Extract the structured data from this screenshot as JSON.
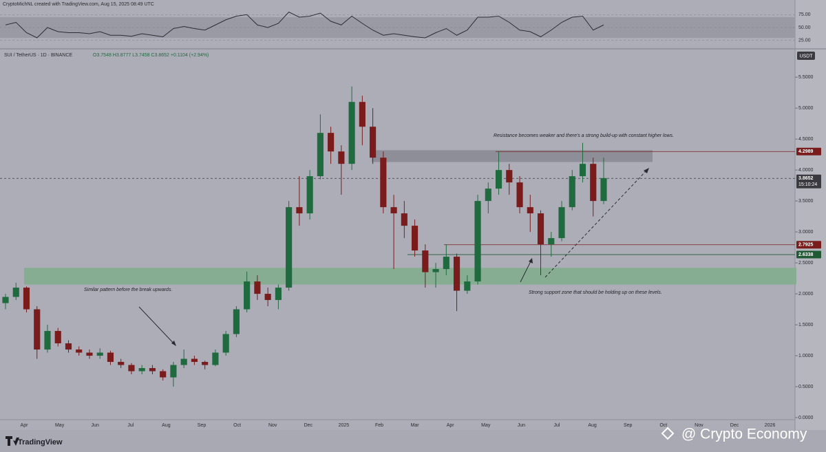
{
  "chart_data": {
    "type": "candlestick",
    "header": "CryptoMichNL created with TradingView.com, Aug 15, 2025 08:49 UTC",
    "symbol_line": "SUI / TetherUS · 1D · BINANCE",
    "ohlc_line": "O3.7548 H3.8777 L3.7458 C3.8652 +0.1104 (+2.94%)",
    "currency": "USDT",
    "up_color": "#1f6b3f",
    "down_color": "#7a1c1c",
    "ylim": [
      0,
      5.68
    ],
    "yticks": [
      {
        "value": 0,
        "label": "0.0000"
      },
      {
        "value": 0.5,
        "label": "0.5000"
      },
      {
        "value": 1,
        "label": "1.0000"
      },
      {
        "value": 1.5,
        "label": "1.5000"
      },
      {
        "value": 2,
        "label": "2.0000"
      },
      {
        "value": 2.5,
        "label": "2.5000"
      },
      {
        "value": 3,
        "label": "3.0000"
      },
      {
        "value": 3.5,
        "label": "3.5000"
      },
      {
        "value": 4,
        "label": "4.0000"
      },
      {
        "value": 4.5,
        "label": "4.5000"
      },
      {
        "value": 5,
        "label": "5.0000"
      },
      {
        "value": 5.5,
        "label": "5.5000"
      }
    ],
    "months": [
      "Apr",
      "May",
      "Jun",
      "Jul",
      "Aug",
      "Sep",
      "Oct",
      "Nov",
      "Dec",
      "2025",
      "Feb",
      "Mar",
      "Apr",
      "May",
      "Jun",
      "Jul",
      "Aug",
      "Sep",
      "Oct",
      "Nov",
      "Dec",
      "2026"
    ],
    "candles": [
      {
        "open": 1.85,
        "high": 2.0,
        "low": 1.75,
        "close": 1.95
      },
      {
        "open": 1.95,
        "high": 2.18,
        "low": 1.9,
        "close": 2.1
      },
      {
        "open": 2.1,
        "high": 2.12,
        "low": 1.7,
        "close": 1.75
      },
      {
        "open": 1.75,
        "high": 1.8,
        "low": 0.95,
        "close": 1.1
      },
      {
        "open": 1.1,
        "high": 1.5,
        "low": 1.05,
        "close": 1.4
      },
      {
        "open": 1.4,
        "high": 1.45,
        "low": 1.15,
        "close": 1.2
      },
      {
        "open": 1.2,
        "high": 1.25,
        "low": 1.05,
        "close": 1.1
      },
      {
        "open": 1.1,
        "high": 1.15,
        "low": 1.0,
        "close": 1.05
      },
      {
        "open": 1.05,
        "high": 1.1,
        "low": 0.95,
        "close": 1.0
      },
      {
        "open": 1.0,
        "high": 1.12,
        "low": 0.95,
        "close": 1.05
      },
      {
        "open": 1.05,
        "high": 1.08,
        "low": 0.85,
        "close": 0.9
      },
      {
        "open": 0.9,
        "high": 0.95,
        "low": 0.8,
        "close": 0.85
      },
      {
        "open": 0.85,
        "high": 0.88,
        "low": 0.7,
        "close": 0.75
      },
      {
        "open": 0.75,
        "high": 0.85,
        "low": 0.7,
        "close": 0.8
      },
      {
        "open": 0.8,
        "high": 0.85,
        "low": 0.7,
        "close": 0.75
      },
      {
        "open": 0.75,
        "high": 0.78,
        "low": 0.6,
        "close": 0.65
      },
      {
        "open": 0.65,
        "high": 0.9,
        "low": 0.5,
        "close": 0.85
      },
      {
        "open": 0.85,
        "high": 1.1,
        "low": 0.8,
        "close": 0.95
      },
      {
        "open": 0.95,
        "high": 1.0,
        "low": 0.85,
        "close": 0.9
      },
      {
        "open": 0.9,
        "high": 0.92,
        "low": 0.78,
        "close": 0.85
      },
      {
        "open": 0.85,
        "high": 1.1,
        "low": 0.83,
        "close": 1.05
      },
      {
        "open": 1.05,
        "high": 1.4,
        "low": 1.0,
        "close": 1.35
      },
      {
        "open": 1.35,
        "high": 1.8,
        "low": 1.3,
        "close": 1.75
      },
      {
        "open": 1.75,
        "high": 2.36,
        "low": 1.7,
        "close": 2.2
      },
      {
        "open": 2.2,
        "high": 2.3,
        "low": 1.9,
        "close": 2.0
      },
      {
        "open": 2.0,
        "high": 2.1,
        "low": 1.8,
        "close": 1.9
      },
      {
        "open": 1.9,
        "high": 2.15,
        "low": 1.75,
        "close": 2.1
      },
      {
        "open": 2.1,
        "high": 3.5,
        "low": 2.05,
        "close": 3.4
      },
      {
        "open": 3.4,
        "high": 3.9,
        "low": 3.1,
        "close": 3.3
      },
      {
        "open": 3.3,
        "high": 4.0,
        "low": 3.2,
        "close": 3.9
      },
      {
        "open": 3.9,
        "high": 4.9,
        "low": 3.85,
        "close": 4.6
      },
      {
        "open": 4.6,
        "high": 4.7,
        "low": 4.1,
        "close": 4.3
      },
      {
        "open": 4.3,
        "high": 4.4,
        "low": 3.6,
        "close": 4.1
      },
      {
        "open": 4.1,
        "high": 5.35,
        "low": 4.0,
        "close": 5.1
      },
      {
        "open": 5.1,
        "high": 5.2,
        "low": 4.4,
        "close": 4.7
      },
      {
        "open": 4.7,
        "high": 5.0,
        "low": 4.1,
        "close": 4.2
      },
      {
        "open": 4.2,
        "high": 4.3,
        "low": 3.3,
        "close": 3.4
      },
      {
        "open": 3.4,
        "high": 3.6,
        "low": 2.4,
        "close": 3.3
      },
      {
        "open": 3.3,
        "high": 3.5,
        "low": 2.9,
        "close": 3.1
      },
      {
        "open": 3.1,
        "high": 3.2,
        "low": 2.6,
        "close": 2.7
      },
      {
        "open": 2.7,
        "high": 2.8,
        "low": 2.1,
        "close": 2.35
      },
      {
        "open": 2.35,
        "high": 2.5,
        "low": 2.1,
        "close": 2.4
      },
      {
        "open": 2.4,
        "high": 2.8,
        "low": 2.3,
        "close": 2.6
      },
      {
        "open": 2.6,
        "high": 2.65,
        "low": 1.72,
        "close": 2.05
      },
      {
        "open": 2.05,
        "high": 2.3,
        "low": 2.0,
        "close": 2.2
      },
      {
        "open": 2.2,
        "high": 3.6,
        "low": 2.15,
        "close": 3.5
      },
      {
        "open": 3.5,
        "high": 3.8,
        "low": 3.3,
        "close": 3.7
      },
      {
        "open": 3.7,
        "high": 4.3,
        "low": 3.6,
        "close": 4.0
      },
      {
        "open": 4.0,
        "high": 4.1,
        "low": 3.6,
        "close": 3.8
      },
      {
        "open": 3.8,
        "high": 3.9,
        "low": 3.3,
        "close": 3.4
      },
      {
        "open": 3.4,
        "high": 3.6,
        "low": 3.0,
        "close": 3.3
      },
      {
        "open": 3.3,
        "high": 3.35,
        "low": 2.3,
        "close": 2.8
      },
      {
        "open": 2.8,
        "high": 3.0,
        "low": 2.6,
        "close": 2.9
      },
      {
        "open": 2.9,
        "high": 3.5,
        "low": 2.85,
        "close": 3.4
      },
      {
        "open": 3.4,
        "high": 4.0,
        "low": 3.35,
        "close": 3.9
      },
      {
        "open": 3.9,
        "high": 4.44,
        "low": 3.8,
        "close": 4.1
      },
      {
        "open": 4.1,
        "high": 4.2,
        "low": 3.25,
        "close": 3.5
      },
      {
        "open": 3.5,
        "high": 4.2,
        "low": 3.45,
        "close": 3.87
      }
    ],
    "rsi": {
      "color": "#2c2c34",
      "ylim": [
        10,
        90
      ],
      "yticks": [
        {
          "value": 75,
          "label": "75.00"
        },
        {
          "value": 50,
          "label": "50.00"
        },
        {
          "value": 25,
          "label": "25.00"
        }
      ],
      "band": [
        30,
        70
      ],
      "values": [
        55,
        60,
        40,
        30,
        50,
        42,
        40,
        40,
        38,
        42,
        35,
        35,
        33,
        38,
        35,
        32,
        48,
        52,
        48,
        45,
        55,
        65,
        72,
        75,
        55,
        50,
        58,
        80,
        70,
        72,
        78,
        62,
        55,
        72,
        58,
        45,
        35,
        38,
        35,
        32,
        30,
        40,
        48,
        35,
        45,
        70,
        70,
        72,
        60,
        45,
        42,
        32,
        45,
        60,
        70,
        72,
        45,
        55
      ]
    },
    "zones": [
      {
        "low": 4.13,
        "high": 4.32,
        "color": "#8e8e98"
      },
      {
        "low": 2.15,
        "high": 2.42,
        "color": "#86ad92"
      }
    ],
    "levels": [
      {
        "value": 4.2989,
        "label": "4.2989",
        "color": "#7a1c1c"
      },
      {
        "value": 3.8652,
        "label": "3.8652",
        "color": "#3a3a40",
        "countdown": "15:10:24"
      },
      {
        "value": 2.7925,
        "label": "2.7925",
        "color": "#7a1c1c"
      },
      {
        "value": 2.6338,
        "label": "2.6338",
        "color": "#1f5a35"
      }
    ],
    "annotations": [
      "Resistance becomes weaker and there's a strong build-up with constant higher lows.",
      "Similar pattern before the break upwards.",
      "Strong support zone that should be holding up on these levels."
    ],
    "footer_logo": "TradingView",
    "watermark": "@ Crypto Economy"
  }
}
